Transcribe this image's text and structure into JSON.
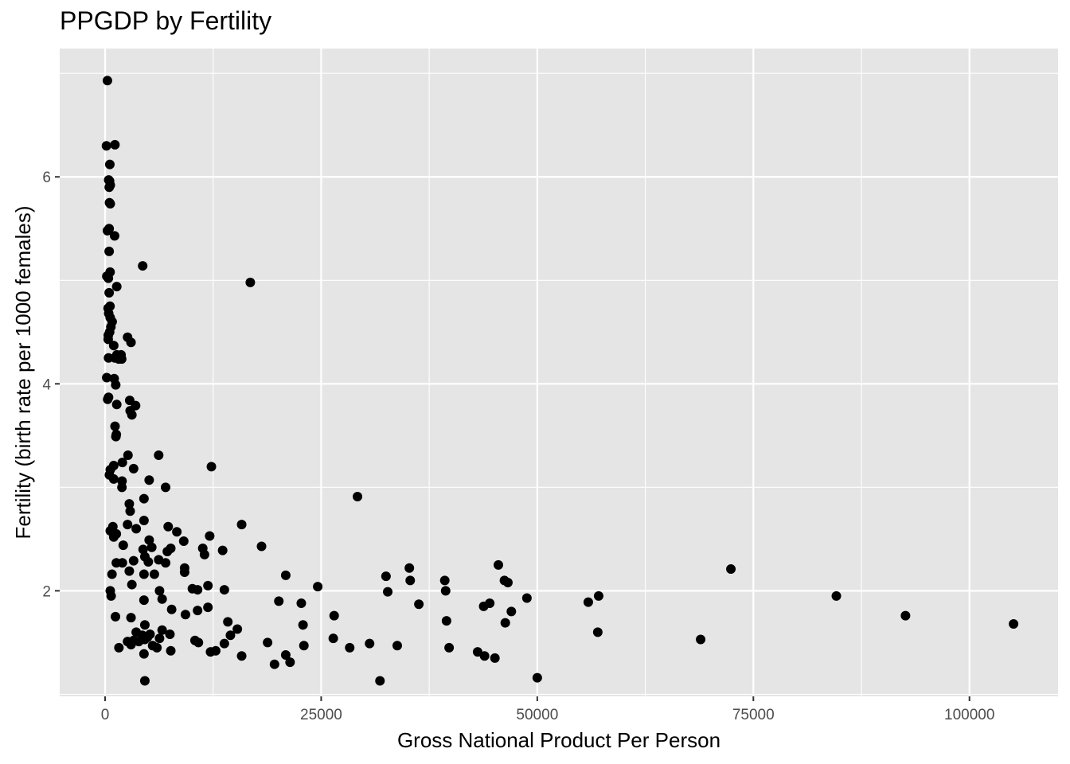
{
  "chart_data": {
    "type": "scatter",
    "title": "PPGDP by Fertility",
    "xlabel": "Gross National Product Per Person",
    "ylabel": "Fertility (birth rate per 1000 females)",
    "xlim": [
      -5250,
      110250
    ],
    "ylim": [
      0.98,
      7.24
    ],
    "x_ticks": [
      0,
      25000,
      50000,
      75000,
      100000
    ],
    "x_tick_labels": [
      "0",
      "25000",
      "50000",
      "75000",
      "100000"
    ],
    "y_ticks": [
      2,
      4,
      6
    ],
    "y_tick_labels": [
      "2",
      "4",
      "6"
    ],
    "grid": true,
    "legend": "none",
    "colors": {
      "panel": "#e5e5e5",
      "grid": "#ffffff",
      "point": "#000000",
      "tick": "#4d4d4d"
    },
    "points": [
      [
        270,
        6.93
      ],
      [
        160,
        6.3
      ],
      [
        1140,
        6.31
      ],
      [
        550,
        6.12
      ],
      [
        420,
        5.97
      ],
      [
        520,
        5.96
      ],
      [
        600,
        5.92
      ],
      [
        480,
        5.9
      ],
      [
        510,
        5.75
      ],
      [
        600,
        5.74
      ],
      [
        270,
        5.48
      ],
      [
        470,
        5.5
      ],
      [
        1100,
        5.43
      ],
      [
        470,
        5.28
      ],
      [
        4350,
        5.14
      ],
      [
        580,
        5.08
      ],
      [
        200,
        5.04
      ],
      [
        380,
        5.02
      ],
      [
        1350,
        4.94
      ],
      [
        16800,
        4.98
      ],
      [
        470,
        4.88
      ],
      [
        570,
        4.75
      ],
      [
        350,
        4.73
      ],
      [
        420,
        4.68
      ],
      [
        590,
        4.64
      ],
      [
        820,
        4.6
      ],
      [
        670,
        4.55
      ],
      [
        530,
        4.5
      ],
      [
        370,
        4.47
      ],
      [
        2600,
        4.45
      ],
      [
        3000,
        4.4
      ],
      [
        360,
        4.43
      ],
      [
        1000,
        4.37
      ],
      [
        1360,
        4.28
      ],
      [
        1850,
        4.28
      ],
      [
        400,
        4.25
      ],
      [
        1130,
        4.25
      ],
      [
        1580,
        4.24
      ],
      [
        1920,
        4.24
      ],
      [
        190,
        4.06
      ],
      [
        1050,
        4.05
      ],
      [
        1230,
        3.99
      ],
      [
        400,
        3.87
      ],
      [
        300,
        3.85
      ],
      [
        2850,
        3.84
      ],
      [
        1350,
        3.8
      ],
      [
        3530,
        3.79
      ],
      [
        2900,
        3.74
      ],
      [
        3100,
        3.7
      ],
      [
        1150,
        3.59
      ],
      [
        1300,
        3.51
      ],
      [
        1250,
        3.49
      ],
      [
        2650,
        3.31
      ],
      [
        6200,
        3.31
      ],
      [
        2000,
        3.24
      ],
      [
        12300,
        3.2
      ],
      [
        1000,
        3.21
      ],
      [
        600,
        3.17
      ],
      [
        3300,
        3.18
      ],
      [
        500,
        3.12
      ],
      [
        1000,
        3.08
      ],
      [
        1960,
        3.06
      ],
      [
        5100,
        3.07
      ],
      [
        1950,
        3.0
      ],
      [
        7000,
        3.0
      ],
      [
        29200,
        2.91
      ],
      [
        4500,
        2.89
      ],
      [
        2800,
        2.84
      ],
      [
        2900,
        2.77
      ],
      [
        4500,
        2.68
      ],
      [
        15800,
        2.64
      ],
      [
        2600,
        2.64
      ],
      [
        7300,
        2.62
      ],
      [
        3600,
        2.6
      ],
      [
        900,
        2.62
      ],
      [
        600,
        2.58
      ],
      [
        8300,
        2.57
      ],
      [
        1300,
        2.55
      ],
      [
        12100,
        2.53
      ],
      [
        1000,
        2.52
      ],
      [
        5100,
        2.49
      ],
      [
        9100,
        2.48
      ],
      [
        18100,
        2.43
      ],
      [
        2100,
        2.44
      ],
      [
        5400,
        2.42
      ],
      [
        11300,
        2.41
      ],
      [
        7600,
        2.41
      ],
      [
        4400,
        2.4
      ],
      [
        7200,
        2.38
      ],
      [
        13600,
        2.39
      ],
      [
        11500,
        2.35
      ],
      [
        4600,
        2.33
      ],
      [
        6200,
        2.3
      ],
      [
        3300,
        2.29
      ],
      [
        5000,
        2.28
      ],
      [
        7000,
        2.27
      ],
      [
        1300,
        2.27
      ],
      [
        2000,
        2.27
      ],
      [
        9200,
        2.22
      ],
      [
        2800,
        2.19
      ],
      [
        9200,
        2.18
      ],
      [
        4500,
        2.16
      ],
      [
        5700,
        2.16
      ],
      [
        35200,
        2.22
      ],
      [
        45500,
        2.25
      ],
      [
        72400,
        2.21
      ],
      [
        20900,
        2.15
      ],
      [
        32500,
        2.14
      ],
      [
        800,
        2.16
      ],
      [
        3100,
        2.06
      ],
      [
        35300,
        2.1
      ],
      [
        39300,
        2.1
      ],
      [
        46200,
        2.1
      ],
      [
        46600,
        2.08
      ],
      [
        24600,
        2.04
      ],
      [
        6300,
        2.0
      ],
      [
        10100,
        2.02
      ],
      [
        10700,
        2.01
      ],
      [
        11900,
        2.05
      ],
      [
        13800,
        2.01
      ],
      [
        39400,
        2.0
      ],
      [
        32700,
        1.99
      ],
      [
        600,
        2.0
      ],
      [
        700,
        1.95
      ],
      [
        48800,
        1.93
      ],
      [
        57100,
        1.95
      ],
      [
        84600,
        1.95
      ],
      [
        4500,
        1.91
      ],
      [
        6600,
        1.92
      ],
      [
        20100,
        1.9
      ],
      [
        22700,
        1.88
      ],
      [
        36300,
        1.87
      ],
      [
        44500,
        1.88
      ],
      [
        55900,
        1.89
      ],
      [
        43800,
        1.85
      ],
      [
        11900,
        1.84
      ],
      [
        7700,
        1.82
      ],
      [
        10700,
        1.81
      ],
      [
        47000,
        1.8
      ],
      [
        9300,
        1.77
      ],
      [
        26500,
        1.76
      ],
      [
        1200,
        1.75
      ],
      [
        3000,
        1.74
      ],
      [
        92600,
        1.76
      ],
      [
        39500,
        1.71
      ],
      [
        14200,
        1.7
      ],
      [
        46300,
        1.69
      ],
      [
        105100,
        1.68
      ],
      [
        4600,
        1.67
      ],
      [
        22900,
        1.67
      ],
      [
        15300,
        1.63
      ],
      [
        6600,
        1.62
      ],
      [
        3600,
        1.6
      ],
      [
        57000,
        1.6
      ],
      [
        14500,
        1.57
      ],
      [
        5200,
        1.58
      ],
      [
        7500,
        1.58
      ],
      [
        4300,
        1.57
      ],
      [
        4900,
        1.55
      ],
      [
        6300,
        1.54
      ],
      [
        26400,
        1.54
      ],
      [
        3300,
        1.52
      ],
      [
        4600,
        1.53
      ],
      [
        10400,
        1.52
      ],
      [
        10800,
        1.5
      ],
      [
        68900,
        1.53
      ],
      [
        2600,
        1.51
      ],
      [
        3900,
        1.51
      ],
      [
        18800,
        1.5
      ],
      [
        30600,
        1.49
      ],
      [
        13800,
        1.49
      ],
      [
        3000,
        1.48
      ],
      [
        5500,
        1.47
      ],
      [
        23000,
        1.47
      ],
      [
        33800,
        1.47
      ],
      [
        1600,
        1.45
      ],
      [
        6000,
        1.45
      ],
      [
        28300,
        1.45
      ],
      [
        39800,
        1.45
      ],
      [
        7600,
        1.42
      ],
      [
        12200,
        1.41
      ],
      [
        12800,
        1.42
      ],
      [
        43100,
        1.41
      ],
      [
        4500,
        1.39
      ],
      [
        20900,
        1.38
      ],
      [
        15800,
        1.37
      ],
      [
        43900,
        1.37
      ],
      [
        45100,
        1.35
      ],
      [
        21400,
        1.31
      ],
      [
        19600,
        1.29
      ],
      [
        4600,
        1.13
      ],
      [
        31800,
        1.13
      ],
      [
        50000,
        1.16
      ]
    ]
  }
}
